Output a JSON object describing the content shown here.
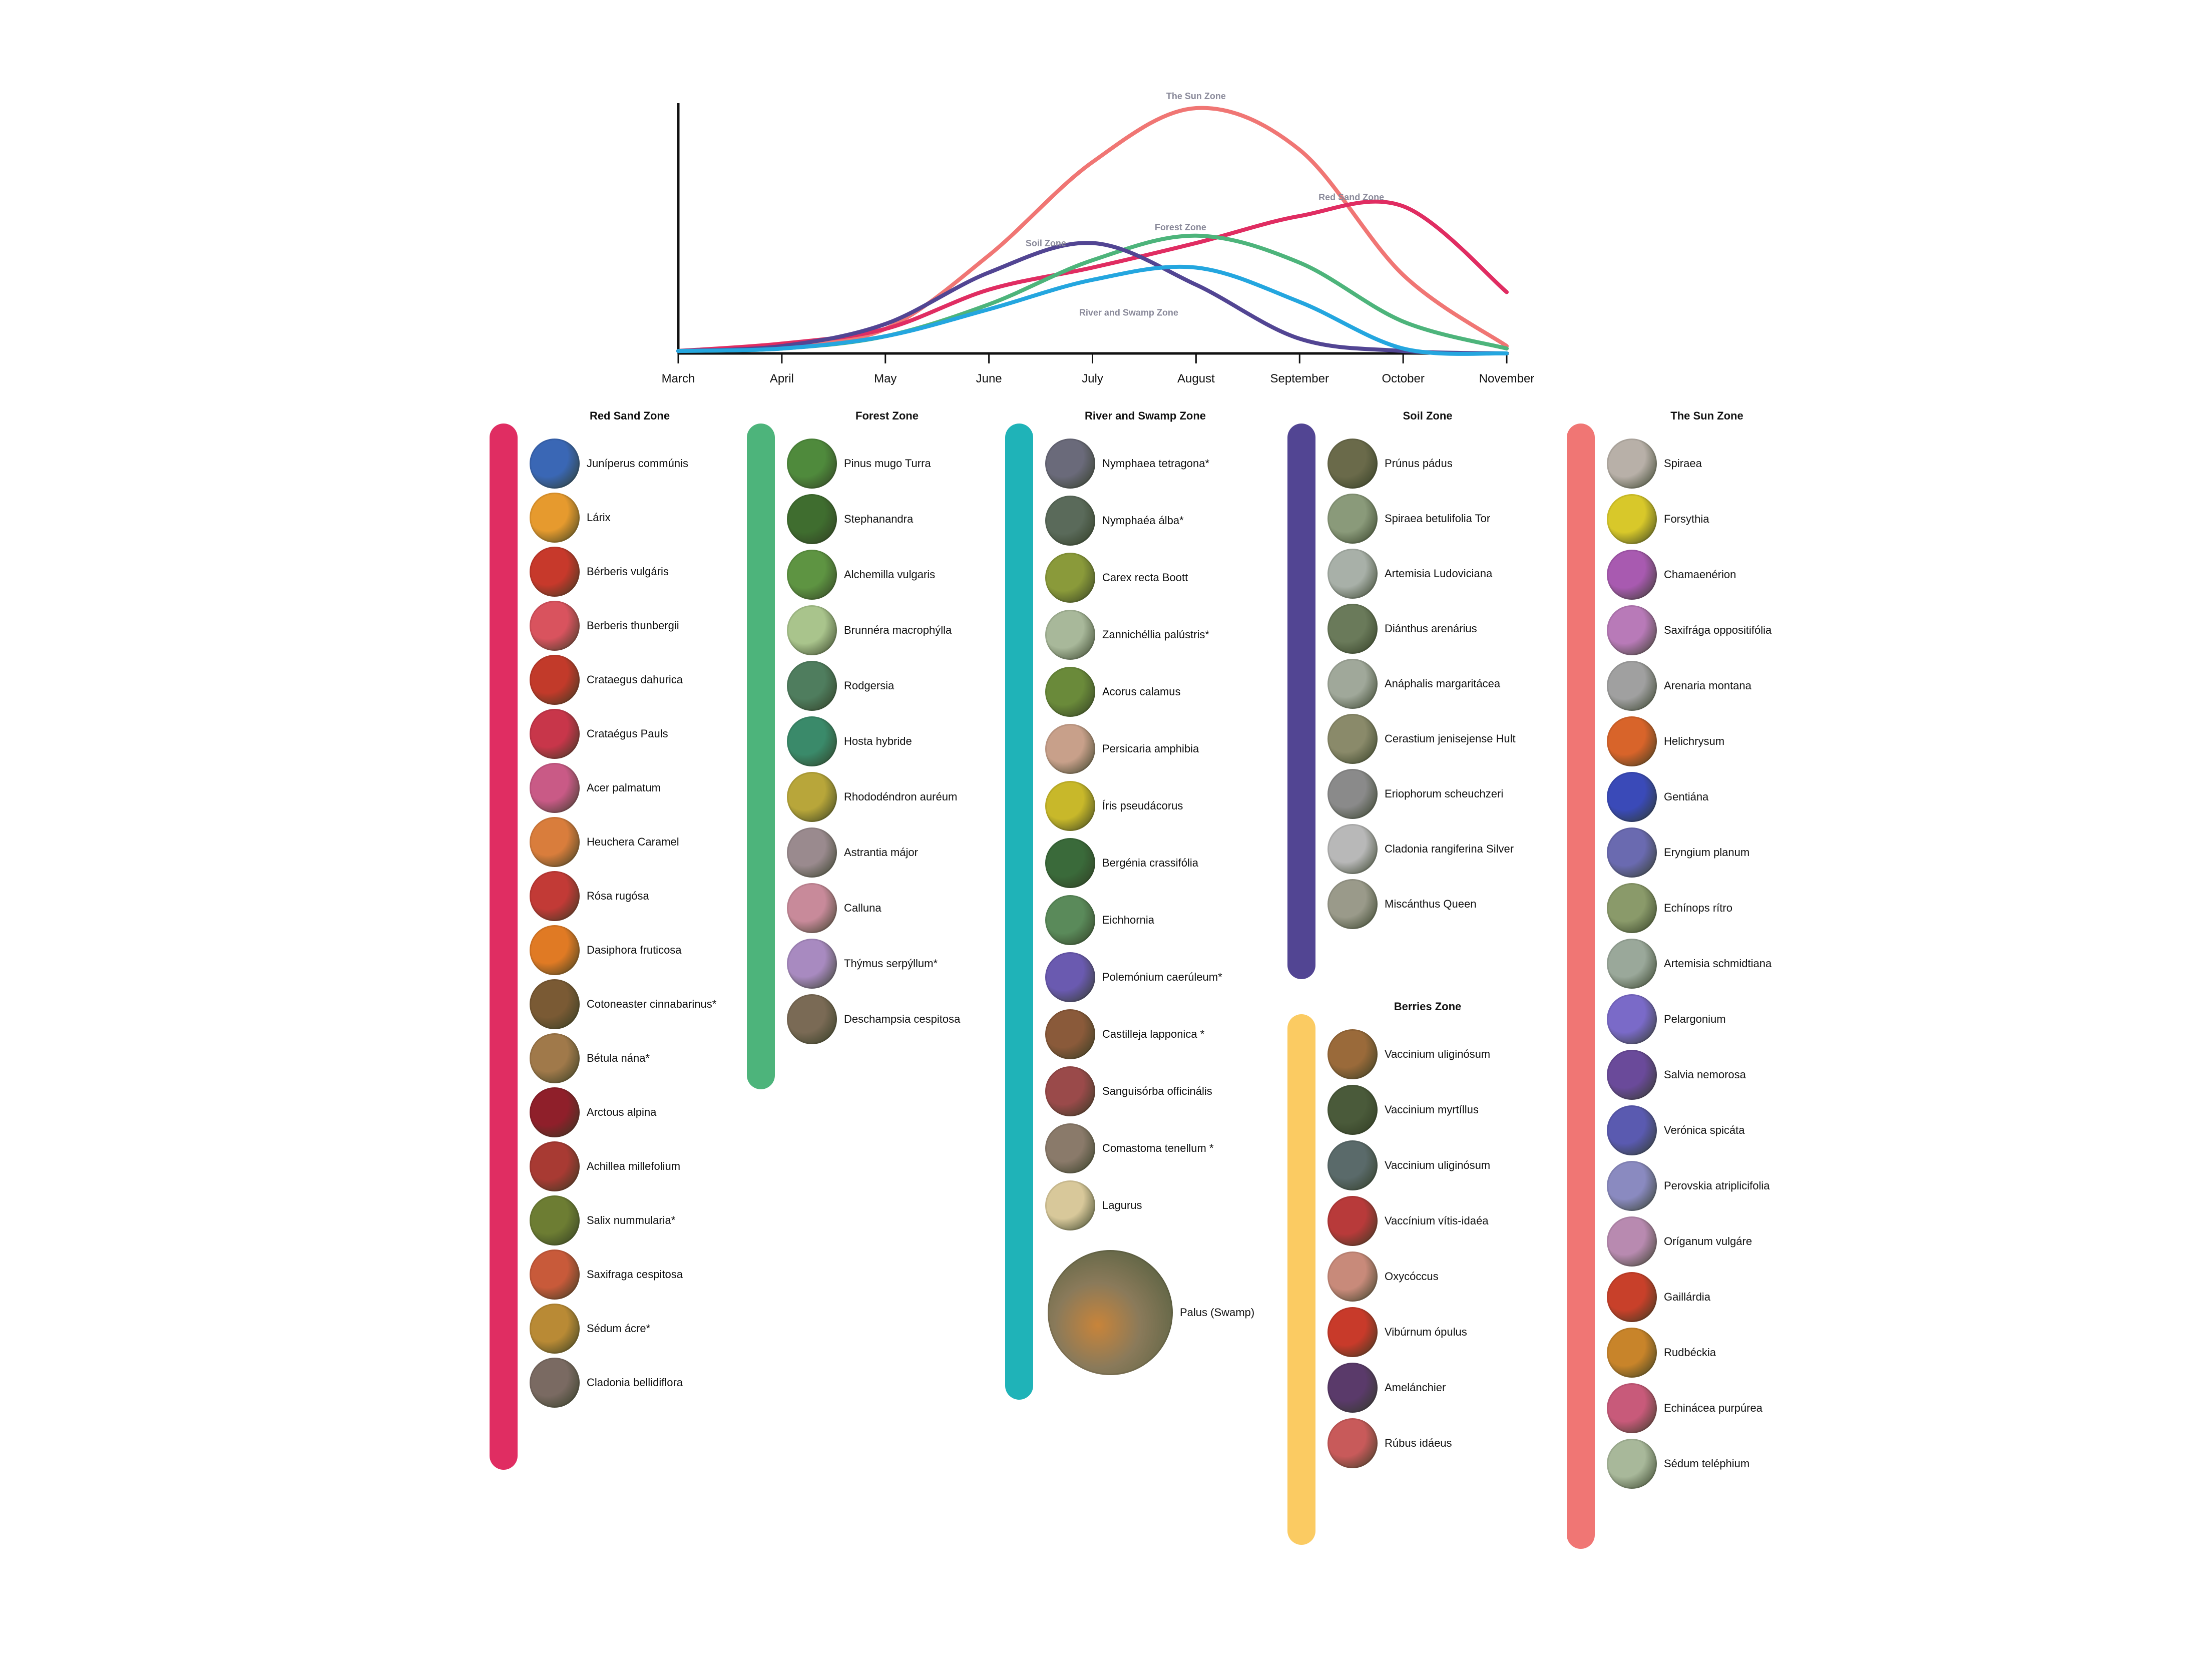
{
  "colors": {
    "red_sand": "#e02d62",
    "forest": "#4db47b",
    "river": "#1fb3b8",
    "soil": "#524593",
    "berries": "#fbcb62",
    "sun": "#f07674"
  },
  "chart_data": {
    "type": "line",
    "title": "",
    "xlabel": "",
    "ylabel": "",
    "x": [
      "March",
      "April",
      "May",
      "June",
      "July",
      "August",
      "September",
      "October",
      "November"
    ],
    "ylim": [
      0,
      100
    ],
    "grid": false,
    "legend": "inline-labels",
    "series": [
      {
        "name": "The Sun Zone",
        "color": "#f07674",
        "values": [
          1,
          3,
          10,
          40,
          78,
          100,
          83,
          32,
          3
        ]
      },
      {
        "name": "Red Sand Zone",
        "color": "#e02d62",
        "values": [
          1,
          4,
          10,
          26,
          35,
          45,
          56,
          60,
          25
        ]
      },
      {
        "name": "Forest Zone",
        "color": "#4db47b",
        "values": [
          1,
          2,
          7,
          20,
          38,
          48,
          37,
          13,
          2
        ]
      },
      {
        "name": "Soil Zone",
        "color": "#524593",
        "values": [
          1,
          3,
          12,
          33,
          45,
          28,
          6,
          1,
          0
        ]
      },
      {
        "name": "River and Swamp  Zone",
        "color": "#24a6df",
        "values": [
          1,
          2,
          7,
          18,
          30,
          35,
          21,
          2,
          0
        ]
      }
    ]
  },
  "zones": [
    {
      "title": "Red Sand Zone",
      "color_key": "red_sand",
      "plants": [
        {
          "name": "Juníperus commúnis",
          "color": "#3a67b5"
        },
        {
          "name": "Lárix",
          "color": "#e69a2e"
        },
        {
          "name": "Bérberis vulgáris",
          "color": "#c7392b"
        },
        {
          "name": "Berberis thunbergii",
          "color": "#d9535e"
        },
        {
          "name": "Crataegus dahurica",
          "color": "#c23a2a"
        },
        {
          "name": "Crataégus Pauls",
          "color": "#c8364a"
        },
        {
          "name": "Acer palmatum",
          "color": "#c95a86"
        },
        {
          "name": "Heuchera Caramel",
          "color": "#d97d3c"
        },
        {
          "name": "Rósa rugósa",
          "color": "#c23a36"
        },
        {
          "name": "Dasiphora fruticosa",
          "color": "#e07a24"
        },
        {
          "name": "Cotoneaster cinnabarinus*",
          "color": "#7a5a34"
        },
        {
          "name": "Bétula nána*",
          "color": "#a0794a"
        },
        {
          "name": "Arctous alpina",
          "color": "#8f1f2a"
        },
        {
          "name": "Achillea millefolium",
          "color": "#a83a33"
        },
        {
          "name": "Salix nummularia*",
          "color": "#6d7d33"
        },
        {
          "name": "Saxifraga cespitosa",
          "color": "#c85a3a"
        },
        {
          "name": "Sédum ácre*",
          "color": "#b98a35"
        },
        {
          "name": "Cladonia bellidiflora",
          "color": "#7a6a62"
        }
      ]
    },
    {
      "title": "Forest Zone",
      "color_key": "forest",
      "plants": [
        {
          "name": "Pinus mugo Turra",
          "color": "#4f8a3c"
        },
        {
          "name": "Stephanandra",
          "color": "#3f6d2f"
        },
        {
          "name": "Alchemilla vulgaris",
          "color": "#5e9442"
        },
        {
          "name": "Brunnéra macrophýlla",
          "color": "#a9c48c"
        },
        {
          "name": "Rodgersia",
          "color": "#4f7d5e"
        },
        {
          "name": "Hosta hybride",
          "color": "#3a8a6a"
        },
        {
          "name": "Rhododéndron auréum",
          "color": "#b8a63a"
        },
        {
          "name": "Astrantia májor",
          "color": "#9a8a8e"
        },
        {
          "name": "Calluna",
          "color": "#c88a9a"
        },
        {
          "name": "Thýmus serpýllum*",
          "color": "#a88ac0"
        },
        {
          "name": "Deschampsia cespitosa",
          "color": "#7a6a55"
        }
      ]
    },
    {
      "title": "River and Swamp  Zone",
      "color_key": "river",
      "plants": [
        {
          "name": "Nymphaea tetragona*",
          "color": "#6a6a7a"
        },
        {
          "name": "Nymphaéa álba*",
          "color": "#5a6a5a"
        },
        {
          "name": "Carex recta Boott",
          "color": "#8a9a3a"
        },
        {
          "name": "Zannichéllia palústris*",
          "color": "#a8b89a"
        },
        {
          "name": "Acorus calamus",
          "color": "#6a8a3a"
        },
        {
          "name": "Persicaria amphibia",
          "color": "#c8a08a"
        },
        {
          "name": "Íris pseudácorus",
          "color": "#c8b82a"
        },
        {
          "name": "Bergénia crassifólia",
          "color": "#3a6a3a"
        },
        {
          "name": "Eichhornia",
          "color": "#5a8a5a"
        },
        {
          "name": "Polemónium caerúleum*",
          "color": "#6a5ab0"
        },
        {
          "name": "Castilleja lapponica *",
          "color": "#8a5a3a"
        },
        {
          "name": "Sanguisórba officinális",
          "color": "#9a4a4a"
        },
        {
          "name": "Comastoma tenellum *",
          "color": "#8a7a6a"
        },
        {
          "name": "Lagurus",
          "color": "#d8c89a"
        }
      ],
      "big_plant": {
        "name": "Palus (Swamp)",
        "color": "#8a7a5a"
      }
    },
    {
      "title": "Soil  Zone",
      "color_key": "soil",
      "plants": [
        {
          "name": "Prúnus pádus",
          "color": "#6a6a4a"
        },
        {
          "name": "Spiraea betulifolia Tor",
          "color": "#8a9a7a"
        },
        {
          "name": "Artemisia Ludoviciana",
          "color": "#a8b0a8"
        },
        {
          "name": "Diánthus arenárius",
          "color": "#6a7a5a"
        },
        {
          "name": "Anáphalis margaritácea",
          "color": "#a0a89a"
        },
        {
          "name": "Cerastium jenisejense Hult",
          "color": "#8a8a6a"
        },
        {
          "name": "Eriophorum scheuchzeri",
          "color": "#8a8a8a"
        },
        {
          "name": "Cladonia rangiferina Silver",
          "color": "#b8b8b8"
        },
        {
          "name": "Miscánthus Queen",
          "color": "#9a9a8a"
        }
      ]
    },
    {
      "title": "Berries  Zone",
      "color_key": "berries",
      "plants": [
        {
          "name": "Vaccinium uliginósum",
          "color": "#9a6a3a"
        },
        {
          "name": "Vaccinium myrtíllus",
          "color": "#4a5a3a"
        },
        {
          "name": "Vaccinium uliginósum",
          "color": "#5a6a6a"
        },
        {
          "name": "Vaccínium vítis-idaéa",
          "color": "#b83a3a"
        },
        {
          "name": "Oxycóccus",
          "color": "#c88a7a"
        },
        {
          "name": "Vibúrnum ópulus",
          "color": "#c83a2a"
        },
        {
          "name": "Amelánchier",
          "color": "#5a3a6a"
        },
        {
          "name": "Rúbus idáeus",
          "color": "#c85a5a"
        }
      ]
    },
    {
      "title": "The Sun Zone",
      "color_key": "sun",
      "plants": [
        {
          "name": "Spiraea",
          "color": "#b8b0a8"
        },
        {
          "name": "Forsythia",
          "color": "#d8c82a"
        },
        {
          "name": "Chamaenérion",
          "color": "#a85ab0"
        },
        {
          "name": "Saxifrága oppositifólia",
          "color": "#b87ab8"
        },
        {
          "name": "Arenaria montana",
          "color": "#a0a0a0"
        },
        {
          "name": "Helichrysum",
          "color": "#d8642a"
        },
        {
          "name": "Gentiána",
          "color": "#3a4ab8"
        },
        {
          "name": "Eryngium planum",
          "color": "#6a6ab0"
        },
        {
          "name": "Echínops rítro",
          "color": "#8a9a6a"
        },
        {
          "name": "Artemisia schmidtiana",
          "color": "#9aa89a"
        },
        {
          "name": "Pelargonium",
          "color": "#7a6ac8"
        },
        {
          "name": "Salvia nemorosa",
          "color": "#6a4a9a"
        },
        {
          "name": "Verónica spicáta",
          "color": "#5a5ab0"
        },
        {
          "name": "Perovskia atriplicifolia",
          "color": "#8a8ac0"
        },
        {
          "name": "Oríganum vulgáre",
          "color": "#b88ab0"
        },
        {
          "name": "Gaillárdia",
          "color": "#c8402a"
        },
        {
          "name": "Rudbéckia",
          "color": "#c8842a"
        },
        {
          "name": "Echinácea purpúrea",
          "color": "#c85a7a"
        },
        {
          "name": "Sédum teléphium",
          "color": "#a8b89a"
        }
      ]
    }
  ]
}
